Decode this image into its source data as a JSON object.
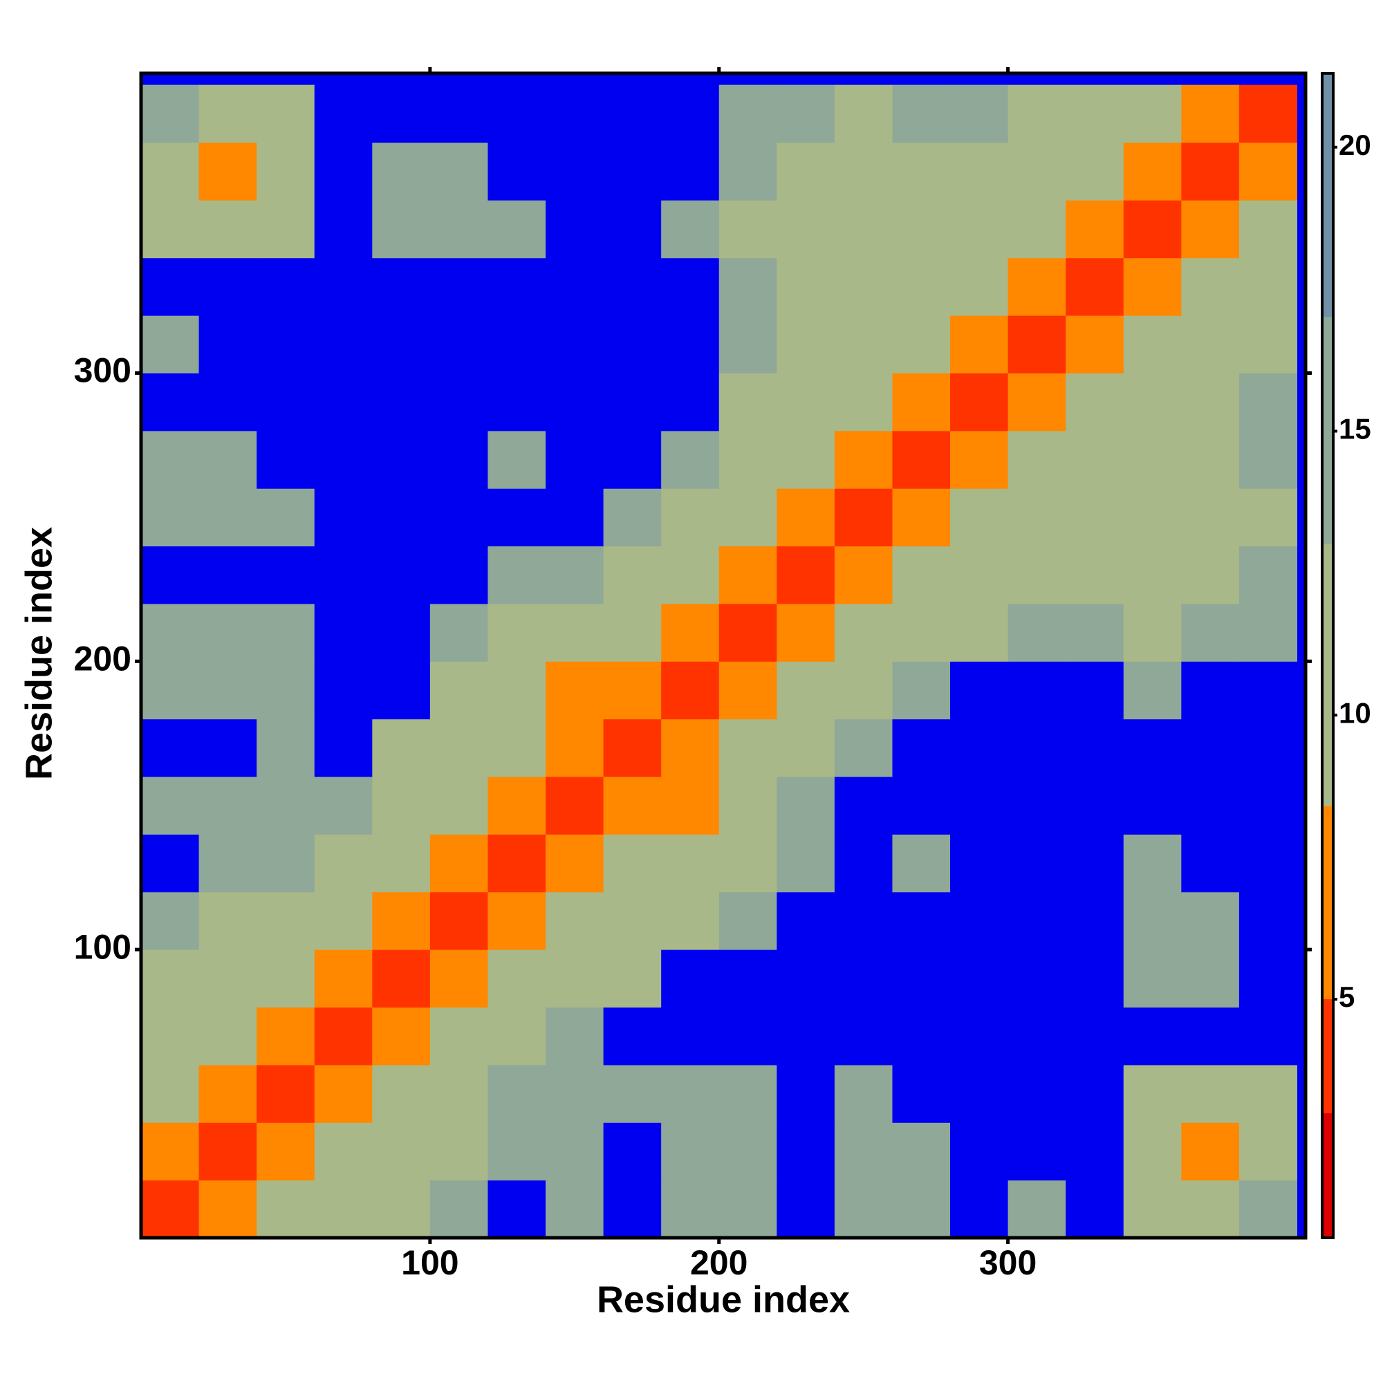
{
  "chart_data": {
    "type": "heatmap",
    "x_label": "Residue index",
    "y_label": "Residue index",
    "bins": [
      0,
      20,
      40,
      60,
      80,
      100,
      120,
      140,
      160,
      180,
      200,
      220,
      240,
      260,
      280,
      300,
      320,
      340,
      360,
      380,
      400
    ],
    "z": [
      [
        3,
        8,
        10,
        11,
        12,
        14,
        22,
        14,
        22,
        15,
        15,
        22,
        14,
        15,
        22,
        15,
        22,
        12,
        11,
        14
      ],
      [
        8,
        3,
        7,
        9,
        12,
        12,
        13,
        13,
        22,
        14,
        14,
        22,
        13,
        14,
        22,
        22,
        22,
        10,
        7,
        12
      ],
      [
        10,
        7,
        3,
        7,
        9,
        12,
        13,
        14,
        15,
        14,
        15,
        22,
        13,
        22,
        22,
        22,
        22,
        12,
        10,
        12
      ],
      [
        11,
        9,
        7,
        3,
        7,
        10,
        12,
        14,
        22,
        22,
        22,
        22,
        22,
        22,
        22,
        22,
        22,
        22,
        22,
        22
      ],
      [
        12,
        12,
        9,
        7,
        3,
        6,
        10,
        12,
        12,
        22,
        22,
        22,
        22,
        22,
        22,
        22,
        22,
        14,
        14,
        22
      ],
      [
        14,
        12,
        12,
        10,
        6,
        3,
        7,
        9,
        12,
        12,
        15,
        22,
        22,
        22,
        22,
        22,
        22,
        15,
        15,
        22
      ],
      [
        22,
        13,
        13,
        12,
        10,
        7,
        3,
        7,
        9,
        10,
        12,
        15,
        22,
        15,
        22,
        22,
        22,
        13,
        22,
        22
      ],
      [
        14,
        13,
        14,
        14,
        12,
        9,
        7,
        3,
        5,
        8,
        12,
        14,
        22,
        22,
        22,
        22,
        22,
        22,
        22,
        22
      ],
      [
        22,
        22,
        15,
        22,
        12,
        12,
        9,
        5,
        3,
        7,
        9,
        12,
        14,
        22,
        22,
        22,
        22,
        22,
        22,
        22
      ],
      [
        15,
        14,
        14,
        22,
        22,
        12,
        10,
        8,
        7,
        3,
        7,
        9,
        11,
        14,
        22,
        22,
        22,
        13,
        22,
        22
      ],
      [
        15,
        14,
        15,
        22,
        22,
        15,
        12,
        12,
        9,
        7,
        3,
        7,
        9,
        11,
        12,
        15,
        13,
        12,
        15,
        15
      ],
      [
        22,
        22,
        22,
        22,
        22,
        22,
        15,
        14,
        12,
        9,
        7,
        3,
        6,
        9,
        12,
        12,
        11,
        12,
        12,
        15
      ],
      [
        14,
        13,
        13,
        22,
        22,
        22,
        22,
        22,
        14,
        11,
        9,
        6,
        3,
        6,
        10,
        12,
        12,
        12,
        12,
        12
      ],
      [
        15,
        14,
        22,
        22,
        22,
        22,
        15,
        22,
        22,
        14,
        11,
        9,
        6,
        3,
        6,
        9,
        11,
        12,
        12,
        14
      ],
      [
        22,
        22,
        22,
        22,
        22,
        22,
        22,
        22,
        22,
        22,
        12,
        12,
        10,
        6,
        3,
        6,
        9,
        11,
        12,
        13
      ],
      [
        15,
        22,
        22,
        22,
        22,
        22,
        22,
        22,
        22,
        22,
        15,
        12,
        12,
        9,
        6,
        3,
        6,
        9,
        11,
        12
      ],
      [
        22,
        22,
        22,
        22,
        22,
        22,
        22,
        22,
        22,
        22,
        13,
        11,
        12,
        11,
        9,
        6,
        3,
        6,
        9,
        11
      ],
      [
        12,
        10,
        12,
        22,
        14,
        15,
        13,
        22,
        22,
        13,
        12,
        12,
        12,
        12,
        11,
        9,
        6,
        3,
        6,
        9
      ],
      [
        11,
        7,
        10,
        22,
        14,
        15,
        22,
        22,
        22,
        22,
        15,
        12,
        12,
        12,
        12,
        11,
        9,
        6,
        3,
        6
      ],
      [
        14,
        12,
        12,
        22,
        22,
        22,
        22,
        22,
        22,
        22,
        15,
        15,
        12,
        14,
        13,
        12,
        11,
        9,
        6,
        3
      ]
    ],
    "xlim": [
      0,
      403
    ],
    "ylim": [
      0,
      404
    ],
    "xticks": [
      100,
      200,
      300
    ],
    "yticks": [
      100,
      200,
      300
    ],
    "clim": [
      0.8,
      21.3
    ],
    "cticks": [
      5,
      10,
      15,
      20
    ],
    "color_stops": [
      {
        "value": 0.8,
        "color": "#dd0000"
      },
      {
        "value": 3,
        "color": "#ff3300"
      },
      {
        "value": 5,
        "color": "#ff8800"
      },
      {
        "value": 8.4,
        "color": "#a8b888"
      },
      {
        "value": 13,
        "color": "#90a898"
      },
      {
        "value": 17,
        "color": "#7090a8"
      }
    ],
    "over_color": "#0000f0"
  }
}
